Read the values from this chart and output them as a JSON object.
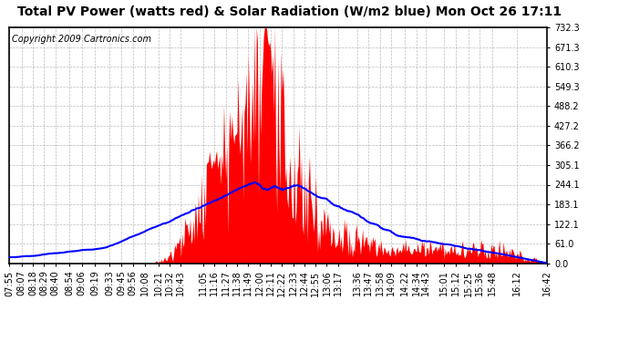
{
  "title": "Total PV Power (watts red) & Solar Radiation (W/m2 blue) Mon Oct 26 17:11",
  "copyright": "Copyright 2009 Cartronics.com",
  "yticks": [
    0.0,
    61.0,
    122.1,
    183.1,
    244.1,
    305.1,
    366.2,
    427.2,
    488.2,
    549.3,
    610.3,
    671.3,
    732.3
  ],
  "ymax": 732.3,
  "ymin": 0.0,
  "bg_color": "#ffffff",
  "grid_color": "#aaaaaa",
  "red_color": "#ff0000",
  "blue_color": "#0000ff",
  "title_fontsize": 10,
  "copyright_fontsize": 7,
  "tick_fontsize": 7,
  "x_tick_labels": [
    "07:55",
    "08:07",
    "08:18",
    "08:29",
    "08:40",
    "08:54",
    "09:06",
    "09:19",
    "09:33",
    "09:45",
    "09:56",
    "10:08",
    "10:21",
    "10:32",
    "10:43",
    "11:05",
    "11:16",
    "11:27",
    "11:38",
    "11:49",
    "12:00",
    "12:11",
    "12:22",
    "12:33",
    "12:44",
    "12:55",
    "13:06",
    "13:17",
    "13:36",
    "13:47",
    "13:58",
    "14:09",
    "14:22",
    "14:34",
    "14:43",
    "15:01",
    "15:12",
    "15:25",
    "15:36",
    "15:48",
    "16:12",
    "16:42"
  ]
}
